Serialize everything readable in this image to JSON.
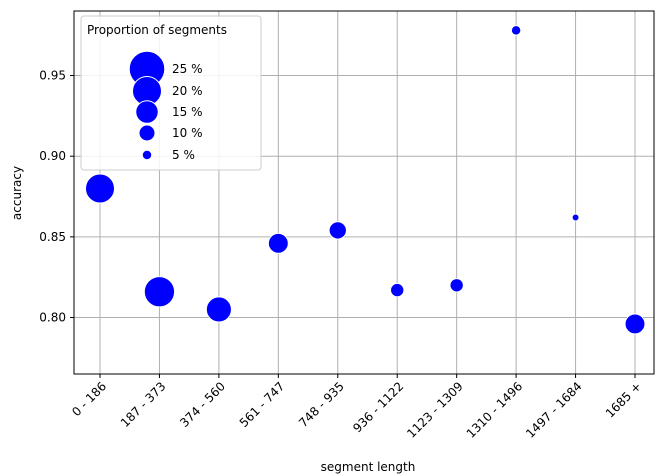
{
  "chart_data": {
    "type": "scatter",
    "xlabel": "segment length",
    "ylabel": "accuracy",
    "categories": [
      "0 - 186",
      "187 - 373",
      "374 - 560",
      "561 - 747",
      "748 - 935",
      "936 - 1122",
      "1123 - 1309",
      "1310 - 1496",
      "1497 - 1684",
      "1685 +"
    ],
    "values": [
      0.88,
      0.816,
      0.805,
      0.846,
      0.854,
      0.817,
      0.82,
      0.978,
      0.862,
      0.796
    ],
    "proportion_percent": [
      20,
      21,
      17,
      13,
      11,
      8,
      8,
      5,
      3,
      13
    ],
    "yticks": [
      0.8,
      0.85,
      0.9,
      0.95
    ],
    "yticklabels": [
      "0.80",
      "0.85",
      "0.90",
      "0.95"
    ],
    "ylim": [
      0.765,
      0.99
    ],
    "grid": true,
    "marker_color": "#0000ff",
    "legend": {
      "title": "Proportion of segments",
      "placement": "top-left",
      "entries": [
        {
          "label": "25 %",
          "value": 25
        },
        {
          "label": "20 %",
          "value": 20
        },
        {
          "label": "15 %",
          "value": 15
        },
        {
          "label": "10 %",
          "value": 10
        },
        {
          "label": "5 %",
          "value": 5
        }
      ]
    }
  }
}
